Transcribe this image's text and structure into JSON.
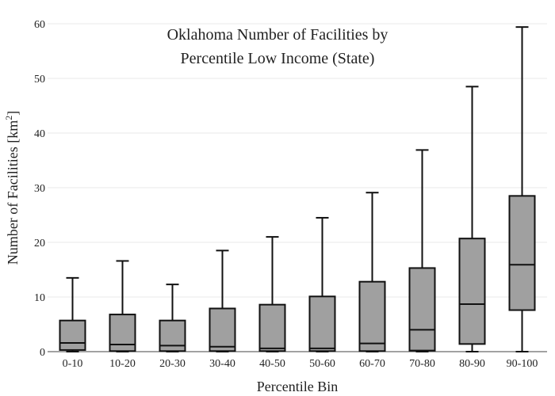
{
  "chart_data": {
    "type": "box",
    "title_lines": [
      "Oklahoma Number of Facilities by",
      "Percentile Low Income (State)"
    ],
    "xlabel": "Percentile Bin",
    "ylabel": "Number of Facilities  [km",
    "ylabel_sup": "2",
    "ylabel_end": "]",
    "ylim": [
      0,
      60
    ],
    "yticks": [
      0,
      10,
      20,
      30,
      40,
      50,
      60
    ],
    "grid": true,
    "colors": {
      "box_fill": "#a0a0a0",
      "stroke": "#111111",
      "grid": "#e8e8e8"
    },
    "categories": [
      "0-10",
      "10-20",
      "20-30",
      "30-40",
      "40-50",
      "50-60",
      "60-70",
      "70-80",
      "80-90",
      "90-100"
    ],
    "boxes": [
      {
        "category": "0-10",
        "min": 0,
        "q1": 0.3,
        "median": 1.6,
        "q3": 5.7,
        "max": 13.5
      },
      {
        "category": "10-20",
        "min": 0,
        "q1": 0.1,
        "median": 1.3,
        "q3": 6.8,
        "max": 16.6
      },
      {
        "category": "20-30",
        "min": 0,
        "q1": 0.1,
        "median": 1.1,
        "q3": 5.7,
        "max": 12.3
      },
      {
        "category": "30-40",
        "min": 0,
        "q1": 0.1,
        "median": 0.9,
        "q3": 7.9,
        "max": 18.5
      },
      {
        "category": "40-50",
        "min": 0,
        "q1": 0.1,
        "median": 0.6,
        "q3": 8.6,
        "max": 21.0
      },
      {
        "category": "50-60",
        "min": 0,
        "q1": 0.1,
        "median": 0.6,
        "q3": 10.1,
        "max": 24.5
      },
      {
        "category": "60-70",
        "min": 0,
        "q1": 0.1,
        "median": 1.5,
        "q3": 12.8,
        "max": 29.1
      },
      {
        "category": "70-80",
        "min": 0,
        "q1": 0.2,
        "median": 4.0,
        "q3": 15.3,
        "max": 36.9
      },
      {
        "category": "80-90",
        "min": 0,
        "q1": 1.4,
        "median": 8.7,
        "q3": 20.7,
        "max": 48.5
      },
      {
        "category": "90-100",
        "min": 0,
        "q1": 7.6,
        "median": 15.9,
        "q3": 28.5,
        "max": 59.4
      }
    ]
  }
}
